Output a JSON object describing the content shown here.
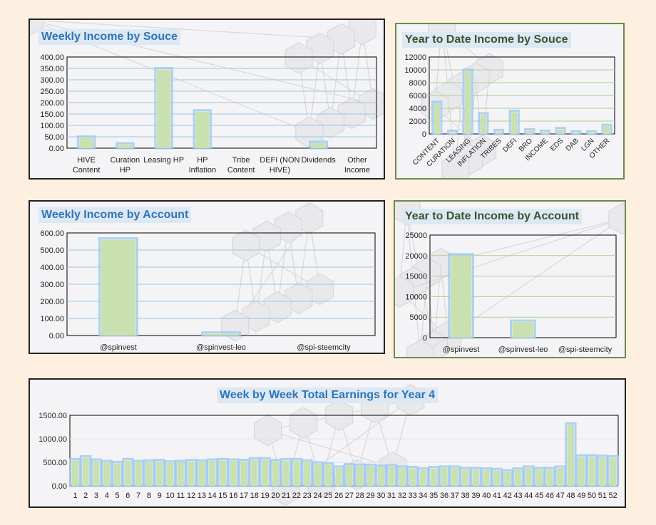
{
  "colors": {
    "bar": "#c9e0b0",
    "bar_glow": "#9cc8f2",
    "grid_blue": "#9cc3e6",
    "grid_green": "#a9d18e",
    "title_blue": "#2e75b6",
    "title_green": "#38562a"
  },
  "chart_data": [
    {
      "id": "weekly_source",
      "type": "bar",
      "title": "Weekly Income by Souce",
      "categories": [
        [
          "HIVE",
          "Content"
        ],
        [
          "Curation",
          "HP"
        ],
        [
          "Leasing HP"
        ],
        [
          "HP",
          "Inflation"
        ],
        [
          "Tribe",
          "Content"
        ],
        [
          "DEFI (NON",
          "HIVE)"
        ],
        [
          "Dividends"
        ],
        [
          "Other",
          "Income"
        ]
      ],
      "values": [
        45,
        15,
        345,
        160,
        0,
        0,
        22,
        0
      ],
      "ylim": [
        0,
        400
      ],
      "yticks": [
        "0.00",
        "50.00",
        "100.00",
        "150.00",
        "200.00",
        "250.00",
        "300.00",
        "350.00",
        "400.00"
      ],
      "grid": true
    },
    {
      "id": "ytd_source",
      "type": "bar",
      "title": "Year to Date Income by Souce",
      "categories": [
        "CONTENT",
        "CURATION",
        "LEASING",
        "INFLATION",
        "TRIBES",
        "DEFI",
        "BRO",
        "INCOME",
        "EDS",
        "DAB",
        "LGN",
        "OTHER"
      ],
      "values": [
        4800,
        300,
        9800,
        3000,
        400,
        3400,
        500,
        300,
        700,
        200,
        200,
        1200
      ],
      "ylim": [
        0,
        12000
      ],
      "yticks": [
        "0",
        "2000",
        "4000",
        "6000",
        "8000",
        "10000",
        "12000"
      ],
      "grid": true
    },
    {
      "id": "weekly_account",
      "type": "bar",
      "title": "Weekly Income by Account",
      "categories": [
        "@spinvest",
        "@spinvest-leo",
        "@spi-steemcity"
      ],
      "values": [
        560,
        10,
        0
      ],
      "ylim": [
        0,
        600
      ],
      "yticks": [
        "0.00",
        "100.00",
        "200.00",
        "300.00",
        "400.00",
        "500.00",
        "600.00"
      ],
      "grid": true
    },
    {
      "id": "ytd_account",
      "type": "bar",
      "title": "Year to Date Income by Account",
      "categories": [
        "@spinvest",
        "@spinvest-leo",
        "@spi-steemcity"
      ],
      "values": [
        20000,
        3800,
        0
      ],
      "ylim": [
        0,
        25000
      ],
      "yticks": [
        "0",
        "5000",
        "10000",
        "15000",
        "20000",
        "25000"
      ],
      "grid": true
    },
    {
      "id": "weekly_total",
      "type": "bar",
      "title": "Week by Week Total Earnings for Year 4",
      "categories": [
        "1",
        "2",
        "3",
        "4",
        "5",
        "6",
        "7",
        "8",
        "9",
        "10",
        "11",
        "12",
        "13",
        "14",
        "15",
        "16",
        "17",
        "18",
        "19",
        "20",
        "21",
        "22",
        "23",
        "24",
        "25",
        "26",
        "27",
        "28",
        "29",
        "30",
        "31",
        "32",
        "33",
        "34",
        "35",
        "36",
        "37",
        "38",
        "39",
        "40",
        "41",
        "42",
        "43",
        "44",
        "45",
        "46",
        "47",
        "48",
        "49",
        "50",
        "51",
        "52"
      ],
      "values": [
        540,
        600,
        530,
        500,
        480,
        540,
        500,
        510,
        520,
        490,
        500,
        520,
        510,
        530,
        540,
        530,
        520,
        560,
        560,
        520,
        540,
        540,
        510,
        470,
        450,
        380,
        430,
        420,
        420,
        400,
        410,
        380,
        370,
        340,
        370,
        380,
        380,
        350,
        350,
        340,
        330,
        300,
        340,
        380,
        350,
        350,
        380,
        1300,
        620,
        620,
        610,
        600
      ],
      "ylim": [
        0,
        1500
      ],
      "yticks": [
        "0.00",
        "500.00",
        "1000.00",
        "1500.00"
      ],
      "grid": true
    }
  ]
}
